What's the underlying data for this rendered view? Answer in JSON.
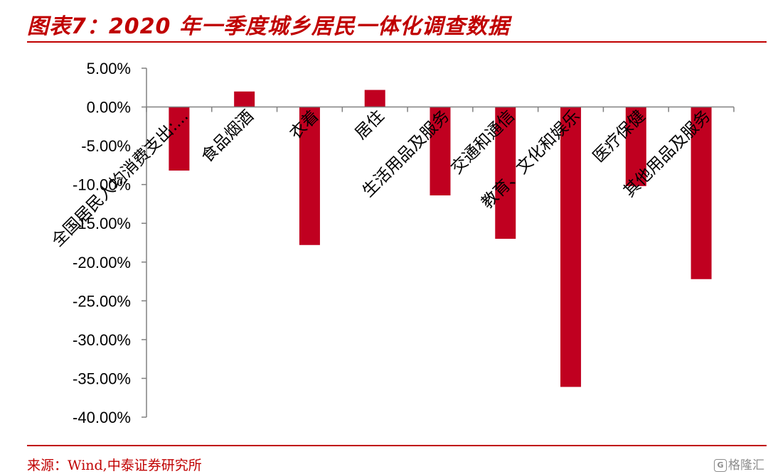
{
  "title": "图表7：2020 年一季度城乡居民一体化调查数据",
  "source": "来源：Wind,中泰证券研究所",
  "watermark": "格隆汇",
  "colors": {
    "bar": "#c00020",
    "accent": "#c00000",
    "axis": "#808080",
    "text": "#000000"
  },
  "chart_data": {
    "type": "bar",
    "title": "",
    "xlabel": "",
    "ylabel": "",
    "ylim": [
      -40,
      5
    ],
    "yticks": [
      5,
      0,
      -5,
      -10,
      -15,
      -20,
      -25,
      -30,
      -35,
      -40
    ],
    "ytick_labels": [
      "5.00%",
      "0.00%",
      "-5.00%",
      "-10.00%",
      "-15.00%",
      "-20.00%",
      "-25.00%",
      "-30.00%",
      "-35.00%",
      "-40.00%"
    ],
    "categories": [
      "全国居民人均消费支出:...",
      "食品烟酒",
      "衣着",
      "居住",
      "生活用品及服务",
      "交通和通信",
      "教育、文化和娱乐",
      "医疗保健",
      "其他用品及服务"
    ],
    "values": [
      -8.2,
      2.0,
      -17.8,
      2.2,
      -11.4,
      -17.0,
      -36.1,
      -10.2,
      -22.2
    ],
    "grid": false,
    "legend": "none"
  }
}
